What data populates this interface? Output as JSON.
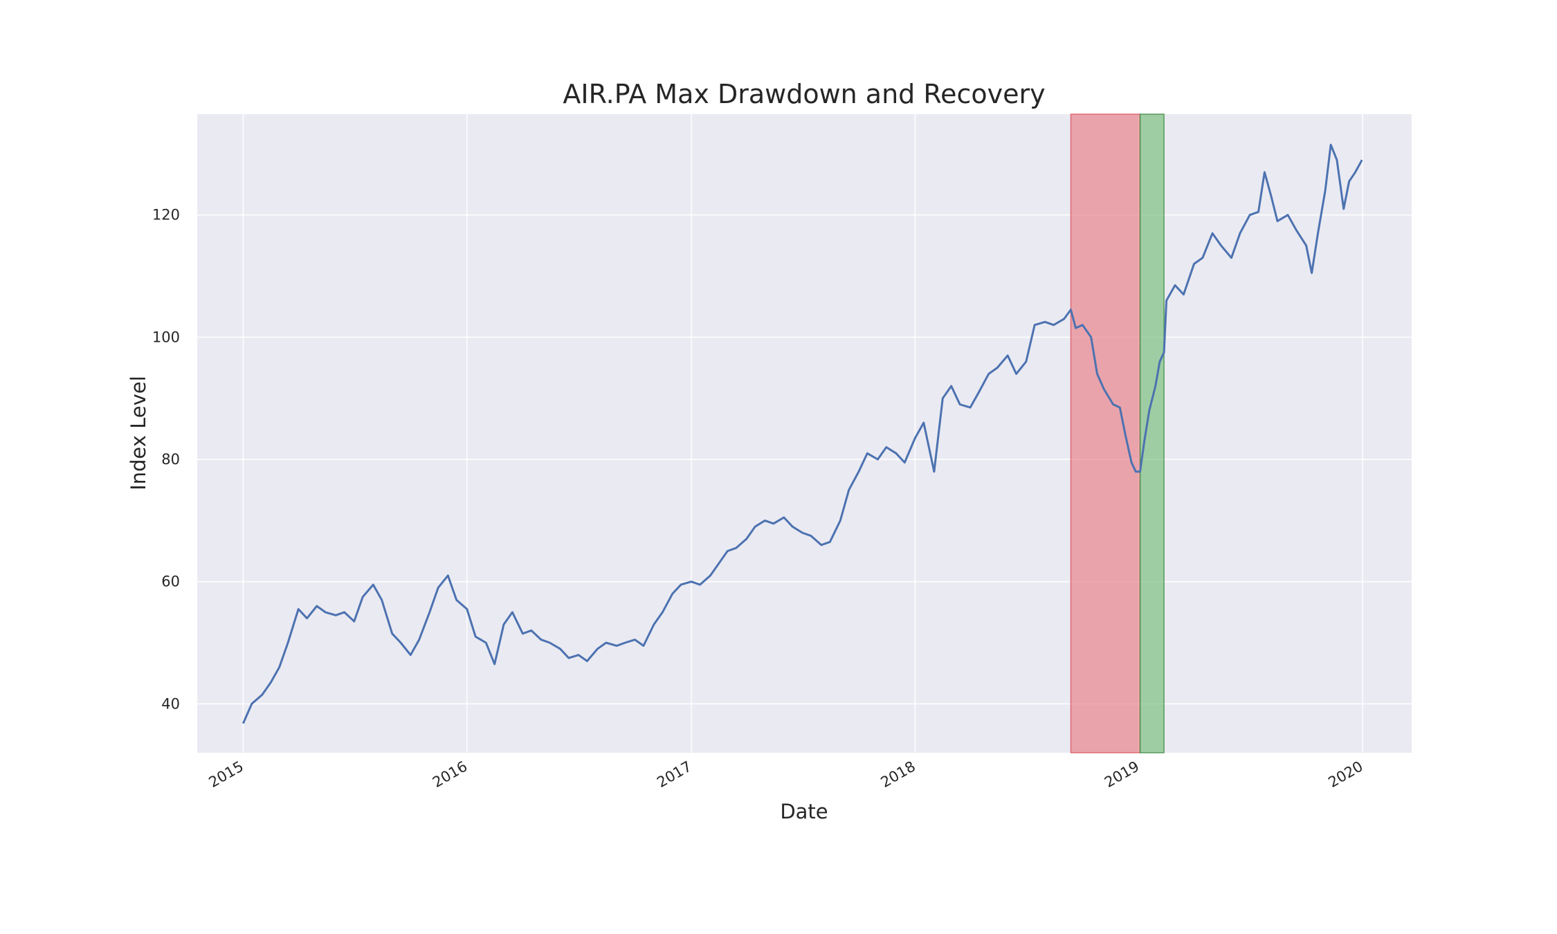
{
  "chart_data": {
    "type": "line",
    "title": "AIR.PA Max Drawdown and Recovery",
    "xlabel": "Date",
    "ylabel": "Index Level",
    "xlim": [
      "2014-10-18",
      "2020-03-21"
    ],
    "ylim": [
      32,
      136.5
    ],
    "grid": true,
    "x_ticks": [
      "2015",
      "2016",
      "2017",
      "2018",
      "2019",
      "2020"
    ],
    "y_ticks": [
      40,
      60,
      80,
      100,
      120
    ],
    "colors": {
      "line": "#4c72b0",
      "drawdown": "#e8737c",
      "recovery": "#6ab96e",
      "background": "#eaeaf2",
      "grid": "#ffffff"
    },
    "drawdown_span": {
      "start": "2018-09-12",
      "end": "2019-01-03"
    },
    "recovery_span": {
      "start": "2019-01-03",
      "end": "2019-02-11"
    },
    "series": [
      {
        "values": [
          [
            "2015-01-01",
            36.8
          ],
          [
            "2015-01-15",
            40.0
          ],
          [
            "2015-02-01",
            41.5
          ],
          [
            "2015-02-15",
            43.5
          ],
          [
            "2015-03-01",
            46.0
          ],
          [
            "2015-03-15",
            50.0
          ],
          [
            "2015-04-01",
            55.5
          ],
          [
            "2015-04-15",
            54.0
          ],
          [
            "2015-05-01",
            56.0
          ],
          [
            "2015-05-15",
            55.0
          ],
          [
            "2015-06-01",
            54.5
          ],
          [
            "2015-06-15",
            55.0
          ],
          [
            "2015-07-01",
            53.5
          ],
          [
            "2015-07-15",
            57.5
          ],
          [
            "2015-08-01",
            59.5
          ],
          [
            "2015-08-15",
            57.0
          ],
          [
            "2015-09-01",
            51.5
          ],
          [
            "2015-09-15",
            50.0
          ],
          [
            "2015-10-01",
            48.0
          ],
          [
            "2015-10-15",
            50.5
          ],
          [
            "2015-11-01",
            55.0
          ],
          [
            "2015-11-15",
            59.0
          ],
          [
            "2015-12-01",
            61.0
          ],
          [
            "2015-12-15",
            57.0
          ],
          [
            "2016-01-01",
            55.5
          ],
          [
            "2016-01-15",
            51.0
          ],
          [
            "2016-02-01",
            50.0
          ],
          [
            "2016-02-15",
            46.5
          ],
          [
            "2016-03-01",
            53.0
          ],
          [
            "2016-03-15",
            55.0
          ],
          [
            "2016-04-01",
            51.5
          ],
          [
            "2016-04-15",
            52.0
          ],
          [
            "2016-05-01",
            50.5
          ],
          [
            "2016-05-15",
            50.0
          ],
          [
            "2016-06-01",
            49.0
          ],
          [
            "2016-06-15",
            47.5
          ],
          [
            "2016-07-01",
            48.0
          ],
          [
            "2016-07-15",
            47.0
          ],
          [
            "2016-08-01",
            49.0
          ],
          [
            "2016-08-15",
            50.0
          ],
          [
            "2016-09-01",
            49.5
          ],
          [
            "2016-09-15",
            50.0
          ],
          [
            "2016-10-01",
            50.5
          ],
          [
            "2016-10-15",
            49.5
          ],
          [
            "2016-11-01",
            53.0
          ],
          [
            "2016-11-15",
            55.0
          ],
          [
            "2016-12-01",
            58.0
          ],
          [
            "2016-12-15",
            59.5
          ],
          [
            "2017-01-01",
            60.0
          ],
          [
            "2017-01-15",
            59.5
          ],
          [
            "2017-02-01",
            61.0
          ],
          [
            "2017-02-15",
            63.0
          ],
          [
            "2017-03-01",
            65.0
          ],
          [
            "2017-03-15",
            65.5
          ],
          [
            "2017-04-01",
            67.0
          ],
          [
            "2017-04-15",
            69.0
          ],
          [
            "2017-05-01",
            70.0
          ],
          [
            "2017-05-15",
            69.5
          ],
          [
            "2017-06-01",
            70.5
          ],
          [
            "2017-06-15",
            69.0
          ],
          [
            "2017-07-01",
            68.0
          ],
          [
            "2017-07-15",
            67.5
          ],
          [
            "2017-08-01",
            66.0
          ],
          [
            "2017-08-15",
            66.5
          ],
          [
            "2017-09-01",
            70.0
          ],
          [
            "2017-09-15",
            75.0
          ],
          [
            "2017-10-01",
            78.0
          ],
          [
            "2017-10-15",
            81.0
          ],
          [
            "2017-11-01",
            80.0
          ],
          [
            "2017-11-15",
            82.0
          ],
          [
            "2017-12-01",
            81.0
          ],
          [
            "2017-12-15",
            79.5
          ],
          [
            "2018-01-01",
            83.5
          ],
          [
            "2018-01-15",
            86.0
          ],
          [
            "2018-02-01",
            78.0
          ],
          [
            "2018-02-15",
            90.0
          ],
          [
            "2018-03-01",
            92.0
          ],
          [
            "2018-03-15",
            89.0
          ],
          [
            "2018-04-01",
            88.5
          ],
          [
            "2018-04-15",
            91.0
          ],
          [
            "2018-05-01",
            94.0
          ],
          [
            "2018-05-15",
            95.0
          ],
          [
            "2018-06-01",
            97.0
          ],
          [
            "2018-06-15",
            94.0
          ],
          [
            "2018-07-01",
            96.0
          ],
          [
            "2018-07-15",
            102.0
          ],
          [
            "2018-08-01",
            102.5
          ],
          [
            "2018-08-15",
            102.0
          ],
          [
            "2018-09-01",
            103.0
          ],
          [
            "2018-09-12",
            104.5
          ],
          [
            "2018-09-20",
            101.5
          ],
          [
            "2018-10-01",
            102.0
          ],
          [
            "2018-10-15",
            100.0
          ],
          [
            "2018-10-25",
            94.0
          ],
          [
            "2018-11-05",
            91.5
          ],
          [
            "2018-11-20",
            89.0
          ],
          [
            "2018-12-01",
            88.5
          ],
          [
            "2018-12-10",
            84.0
          ],
          [
            "2018-12-20",
            79.5
          ],
          [
            "2018-12-27",
            78.0
          ],
          [
            "2019-01-03",
            78.0
          ],
          [
            "2019-01-10",
            83.0
          ],
          [
            "2019-01-18",
            88.0
          ],
          [
            "2019-01-28",
            92.0
          ],
          [
            "2019-02-04",
            96.0
          ],
          [
            "2019-02-11",
            97.5
          ],
          [
            "2019-02-15",
            106.0
          ],
          [
            "2019-03-01",
            108.5
          ],
          [
            "2019-03-15",
            107.0
          ],
          [
            "2019-04-01",
            112.0
          ],
          [
            "2019-04-15",
            113.0
          ],
          [
            "2019-05-01",
            117.0
          ],
          [
            "2019-05-15",
            115.0
          ],
          [
            "2019-06-01",
            113.0
          ],
          [
            "2019-06-15",
            117.0
          ],
          [
            "2019-07-01",
            120.0
          ],
          [
            "2019-07-15",
            120.5
          ],
          [
            "2019-07-25",
            127.0
          ],
          [
            "2019-08-05",
            123.0
          ],
          [
            "2019-08-15",
            119.0
          ],
          [
            "2019-09-01",
            120.0
          ],
          [
            "2019-09-15",
            117.5
          ],
          [
            "2019-10-01",
            115.0
          ],
          [
            "2019-10-10",
            110.5
          ],
          [
            "2019-10-20",
            117.0
          ],
          [
            "2019-11-01",
            124.0
          ],
          [
            "2019-11-10",
            131.5
          ],
          [
            "2019-11-20",
            129.0
          ],
          [
            "2019-12-01",
            121.0
          ],
          [
            "2019-12-10",
            125.5
          ],
          [
            "2019-12-20",
            127.0
          ],
          [
            "2019-12-31",
            129.0
          ]
        ]
      }
    ]
  }
}
